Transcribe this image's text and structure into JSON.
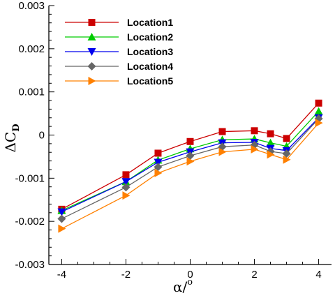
{
  "chart_data": {
    "type": "line",
    "title": "",
    "xlabel": "α/°",
    "ylabel": "ΔC_D",
    "ylabel_main": "ΔC",
    "ylabel_sub": "D",
    "xlabel_main": "α/",
    "xlabel_sup": "o",
    "xlim": [
      -4.4,
      4.4
    ],
    "ylim": [
      -0.003,
      0.003
    ],
    "xticks": [
      -4,
      -2,
      0,
      2,
      4
    ],
    "xtick_labels": [
      "-4",
      "-2",
      "0",
      "2",
      "4"
    ],
    "yticks": [
      -0.003,
      -0.002,
      -0.001,
      0,
      0.001,
      0.002,
      0.003
    ],
    "ytick_labels": [
      "-0.003",
      "-0.002",
      "-0.001",
      "0",
      "0.001",
      "0.002",
      "0.003"
    ],
    "grid": false,
    "legend_position": "top-left",
    "x": [
      -4,
      -2,
      -1,
      0,
      1,
      2,
      2.5,
      3,
      4
    ],
    "series": [
      {
        "name": "Location1",
        "color": "#cc0000",
        "marker": "square",
        "values": [
          -0.00172,
          -0.00092,
          -0.00042,
          -0.00015,
          8e-05,
          0.0001,
          3e-05,
          -8e-05,
          0.00074
        ]
      },
      {
        "name": "Location2",
        "color": "#00cc00",
        "marker": "triangle-up",
        "values": [
          -0.00175,
          -0.00108,
          -0.00058,
          -0.00032,
          -0.00011,
          -9e-05,
          -0.00018,
          -0.00026,
          0.00055
        ]
      },
      {
        "name": "Location3",
        "color": "#0000ee",
        "marker": "triangle-down",
        "values": [
          -0.00178,
          -0.00108,
          -0.00063,
          -0.00039,
          -0.00018,
          -0.00017,
          -0.00031,
          -0.00036,
          0.0004
        ]
      },
      {
        "name": "Location4",
        "color": "#666666",
        "marker": "diamond",
        "values": [
          -0.00194,
          -0.00121,
          -0.00074,
          -0.00048,
          -0.00027,
          -0.00023,
          -0.00038,
          -0.00043,
          0.00038
        ]
      },
      {
        "name": "Location5",
        "color": "#ff8000",
        "marker": "triangle-right",
        "values": [
          -0.00217,
          -0.0014,
          -0.00088,
          -0.00061,
          -0.00039,
          -0.00033,
          -0.00045,
          -0.00057,
          0.00028
        ]
      }
    ]
  }
}
